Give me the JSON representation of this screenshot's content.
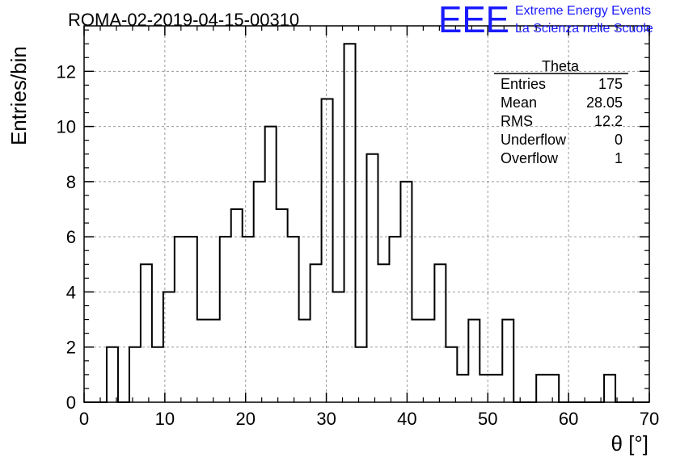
{
  "header": {
    "run_title": "ROMA-02-2019-04-15-00310",
    "logo_mark": "EEE",
    "logo_line1": "Extreme Energy Events",
    "logo_line2": "La Scienza nelle Scuole",
    "logo_color": "#1a1aff"
  },
  "stats_box": {
    "title": "Theta",
    "rows": [
      {
        "label": "Entries",
        "value": "175"
      },
      {
        "label": "Mean",
        "value": "28.05"
      },
      {
        "label": "RMS",
        "value": "12.2"
      },
      {
        "label": "Underflow",
        "value": "0"
      },
      {
        "label": "Overflow",
        "value": "1"
      }
    ]
  },
  "chart_data": {
    "type": "histogram",
    "title": "ROMA-02-2019-04-15-00310",
    "xlabel": "θ [°]",
    "ylabel": "Entries/bin",
    "xlim": [
      0,
      70
    ],
    "ylim": [
      0,
      13.65
    ],
    "x_ticks": [
      0,
      10,
      20,
      30,
      40,
      50,
      60,
      70
    ],
    "y_ticks": [
      0,
      2,
      4,
      6,
      8,
      10,
      12
    ],
    "grid": true,
    "bin_width": 1.4,
    "bin_edges_start": 0,
    "values": [
      0,
      0,
      2,
      0,
      2,
      5,
      2,
      4,
      6,
      6,
      3,
      3,
      6,
      7,
      6,
      8,
      10,
      7,
      6,
      3,
      5,
      11,
      4,
      13,
      2,
      9,
      5,
      6,
      8,
      3,
      3,
      5,
      2,
      1,
      3,
      1,
      1,
      3,
      0,
      0,
      1,
      1,
      0,
      0,
      0,
      0,
      1,
      0,
      0,
      0
    ],
    "line_color": "#000000"
  }
}
